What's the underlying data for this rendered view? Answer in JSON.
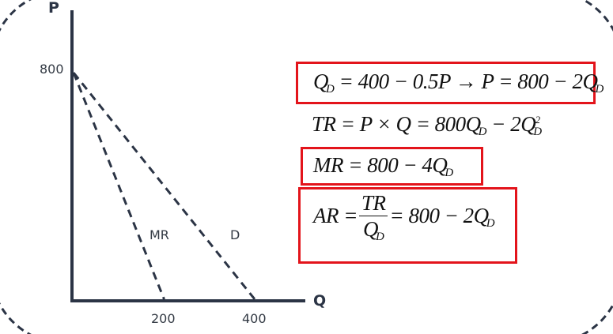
{
  "diagram": {
    "y_axis_label": "P",
    "x_axis_label": "Q",
    "y_tick_label": "800",
    "x_tick_labels": [
      "200",
      "400"
    ],
    "curve_labels": {
      "mr": "MR",
      "d": "D"
    },
    "line_color": "#2b3445",
    "highlight_color": "#e3141b"
  },
  "chart_data": {
    "type": "line",
    "xlabel": "Q",
    "ylabel": "P",
    "series": [
      {
        "name": "MR",
        "x": [
          0,
          200
        ],
        "y": [
          800,
          0
        ],
        "style": "dashed"
      },
      {
        "name": "D",
        "x": [
          0,
          400
        ],
        "y": [
          800,
          0
        ],
        "style": "dashed"
      }
    ]
  },
  "equations": {
    "demand": "Q_D = 400 − 0.5P → P = 800 − 2Q_D",
    "total_revenue": "TR = P × Q = 800Q_D − 2Q_D^2",
    "marginal_revenue": "MR = 800 − 4Q_D",
    "average_revenue": {
      "lhs": "AR =",
      "numerator": "TR",
      "denominator": "Q_D",
      "rhs": "= 800 − 2Q_D"
    }
  }
}
